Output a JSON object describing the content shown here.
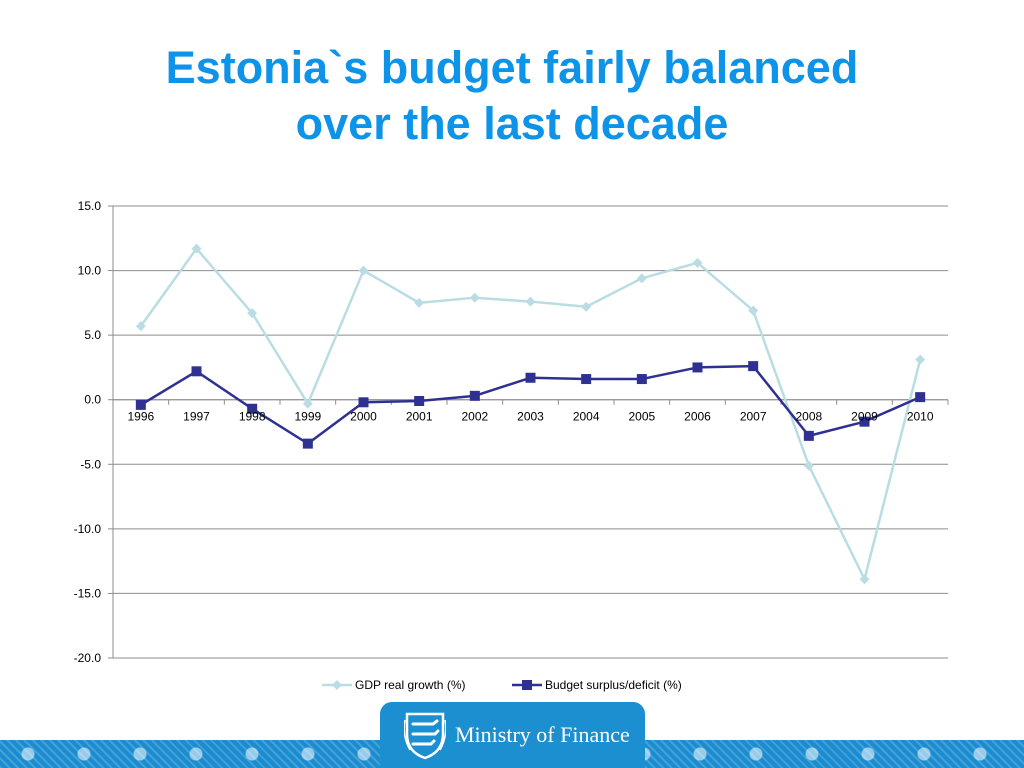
{
  "title": {
    "line1": "Estonia`s budget fairly balanced",
    "line2": "over the last decade"
  },
  "chart_data": {
    "type": "line",
    "categories": [
      "1996",
      "1997",
      "1998",
      "1999",
      "2000",
      "2001",
      "2002",
      "2003",
      "2004",
      "2005",
      "2006",
      "2007",
      "2008",
      "2009",
      "2010"
    ],
    "series": [
      {
        "name": "GDP real growth (%)",
        "marker": "diamond",
        "color": "#b9dde3",
        "values": [
          5.7,
          11.7,
          6.7,
          -0.3,
          10.0,
          7.5,
          7.9,
          7.6,
          7.2,
          9.4,
          10.6,
          6.9,
          -5.1,
          -13.9,
          3.1
        ]
      },
      {
        "name": "Budget surplus/deficit (%)",
        "marker": "square",
        "color": "#2e3192",
        "values": [
          -0.4,
          2.2,
          -0.7,
          -3.4,
          -0.2,
          -0.1,
          0.3,
          1.7,
          1.6,
          1.6,
          2.5,
          2.6,
          -2.8,
          -1.7,
          0.2
        ]
      }
    ],
    "yticks": [
      "15.0",
      "10.0",
      "5.0",
      "0.0",
      "-5.0",
      "-10.0",
      "-15.0",
      "-20.0"
    ],
    "ylim": [
      -20,
      15
    ],
    "grid": true,
    "legend": "bottom",
    "xlabel": "",
    "ylabel": ""
  },
  "footer": {
    "organization": "Ministry of Finance",
    "crest_icon": "estonian-coat-of-arms-icon",
    "accent_color": "#1c8fd1"
  }
}
